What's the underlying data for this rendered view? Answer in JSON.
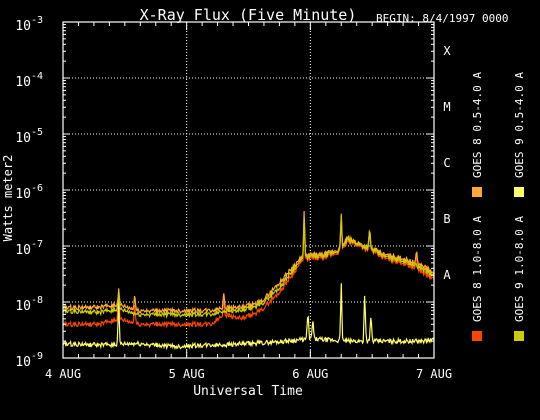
{
  "chart_data": {
    "type": "line",
    "title": "X-Ray Flux (Five Minute)",
    "begin_label": "BEGIN: 8/4/1997 0000",
    "xlabel": "Universal Time",
    "ylabel": "Watts meter2",
    "y_scale": "log",
    "ylim": [
      1e-09,
      0.001
    ],
    "xlim": [
      0,
      3
    ],
    "x_ticks": [
      {
        "v": 0,
        "label": "4 AUG"
      },
      {
        "v": 1,
        "label": "5 AUG"
      },
      {
        "v": 2,
        "label": "6 AUG"
      },
      {
        "v": 3,
        "label": "7 AUG"
      }
    ],
    "y_ticks": [
      {
        "exp": -9,
        "base": "10",
        "sup": "-9"
      },
      {
        "exp": -8,
        "base": "10",
        "sup": "-8"
      },
      {
        "exp": -7,
        "base": "10",
        "sup": "-7"
      },
      {
        "exp": -6,
        "base": "10",
        "sup": "-6"
      },
      {
        "exp": -5,
        "base": "10",
        "sup": "-5"
      },
      {
        "exp": -4,
        "base": "10",
        "sup": "-4"
      },
      {
        "exp": -3,
        "base": "10",
        "sup": "-3"
      }
    ],
    "flare_classes": [
      {
        "label": "A",
        "exp": -7.5
      },
      {
        "label": "B",
        "exp": -6.5
      },
      {
        "label": "C",
        "exp": -5.5
      },
      {
        "label": "M",
        "exp": -4.5
      },
      {
        "label": "X",
        "exp": -3.5
      }
    ],
    "grid": true,
    "legend_placement": "right",
    "series": [
      {
        "name": "GOES 8 1.0-8.0 A",
        "color": "#ff4400",
        "points": [
          [
            0,
            4e-09
          ],
          [
            0.3,
            4e-09
          ],
          [
            0.45,
            5e-09
          ],
          [
            0.6,
            4e-09
          ],
          [
            0.9,
            4e-09
          ],
          [
            1.2,
            4e-09
          ],
          [
            1.3,
            6e-09
          ],
          [
            1.45,
            5e-09
          ],
          [
            1.6,
            7e-09
          ],
          [
            1.75,
            1.5e-08
          ],
          [
            1.85,
            3e-08
          ],
          [
            1.92,
            5e-08
          ],
          [
            2.0,
            6e-08
          ],
          [
            2.1,
            6e-08
          ],
          [
            2.25,
            8e-08
          ],
          [
            2.3,
            1.2e-07
          ],
          [
            2.4,
            1e-07
          ],
          [
            2.5,
            8e-08
          ],
          [
            2.6,
            6e-08
          ],
          [
            2.75,
            5e-08
          ],
          [
            2.85,
            4e-08
          ],
          [
            2.95,
            3e-08
          ],
          [
            3.0,
            2.5e-08
          ]
        ],
        "spikes": [
          [
            0.45,
            1.2e-08
          ],
          [
            0.58,
            1e-08
          ],
          [
            1.3,
            1.2e-08
          ],
          [
            1.95,
            2.5e-07
          ],
          [
            2.25,
            3e-07
          ],
          [
            2.48,
            1.8e-07
          ],
          [
            2.86,
            7e-08
          ]
        ]
      },
      {
        "name": "GOES 8 0.5-4.0 A",
        "color": "#ffaa33",
        "points": [
          [
            0,
            8e-09
          ],
          [
            0.3,
            8e-09
          ],
          [
            0.45,
            9e-09
          ],
          [
            0.6,
            7e-09
          ],
          [
            0.9,
            7e-09
          ],
          [
            1.2,
            7e-09
          ],
          [
            1.3,
            8e-09
          ],
          [
            1.45,
            8e-09
          ],
          [
            1.6,
            1e-08
          ],
          [
            1.75,
            2.2e-08
          ],
          [
            1.85,
            4e-08
          ],
          [
            1.92,
            6e-08
          ],
          [
            2.0,
            7e-08
          ],
          [
            2.1,
            7e-08
          ],
          [
            2.25,
            9e-08
          ],
          [
            2.3,
            1.4e-07
          ],
          [
            2.4,
            1.1e-07
          ],
          [
            2.5,
            9e-08
          ],
          [
            2.6,
            7e-08
          ],
          [
            2.75,
            6e-08
          ],
          [
            2.85,
            5e-08
          ],
          [
            2.95,
            4e-08
          ],
          [
            3.0,
            3e-08
          ]
        ],
        "spikes": [
          [
            0.45,
            1.6e-08
          ],
          [
            0.58,
            1.4e-08
          ],
          [
            1.3,
            1.5e-08
          ],
          [
            1.95,
            4e-07
          ],
          [
            2.25,
            3.5e-07
          ],
          [
            2.48,
            2e-07
          ],
          [
            2.86,
            8e-08
          ]
        ]
      },
      {
        "name": "GOES 9 0.5-4.0 A",
        "color": "#ffff66",
        "points": [
          [
            0,
            1.8e-09
          ],
          [
            0.3,
            1.7e-09
          ],
          [
            0.6,
            1.8e-09
          ],
          [
            0.9,
            1.6e-09
          ],
          [
            1.2,
            1.7e-09
          ],
          [
            1.5,
            1.8e-09
          ],
          [
            1.8,
            2e-09
          ],
          [
            2.0,
            2.2e-09
          ],
          [
            2.3,
            2e-09
          ],
          [
            2.6,
            2e-09
          ],
          [
            2.9,
            2e-09
          ],
          [
            3.0,
            2.1e-09
          ]
        ],
        "spikes": [
          [
            0.45,
            1e-08
          ],
          [
            1.98,
            7e-09
          ],
          [
            2.02,
            5e-09
          ],
          [
            2.25,
            2e-08
          ],
          [
            2.44,
            1.5e-08
          ],
          [
            2.49,
            6e-09
          ]
        ]
      },
      {
        "name": "GOES 9 1.0-8.0 A",
        "color": "#cccc00",
        "points": [
          [
            0,
            7e-09
          ],
          [
            0.3,
            6.5e-09
          ],
          [
            0.45,
            7.5e-09
          ],
          [
            0.6,
            6e-09
          ],
          [
            0.9,
            6e-09
          ],
          [
            1.2,
            6e-09
          ],
          [
            1.3,
            7e-09
          ],
          [
            1.45,
            7e-09
          ],
          [
            1.6,
            9e-09
          ],
          [
            1.75,
            1.8e-08
          ],
          [
            1.85,
            3.5e-08
          ],
          [
            1.92,
            5.5e-08
          ],
          [
            2.0,
            6.5e-08
          ],
          [
            2.1,
            6.5e-08
          ],
          [
            2.25,
            8.5e-08
          ],
          [
            2.3,
            1.3e-07
          ],
          [
            2.4,
            1.05e-07
          ],
          [
            2.5,
            8.5e-08
          ],
          [
            2.6,
            6.5e-08
          ],
          [
            2.75,
            5.5e-08
          ],
          [
            2.85,
            4.5e-08
          ],
          [
            2.95,
            3.5e-08
          ],
          [
            3.0,
            2.8e-08
          ]
        ],
        "spikes": [
          [
            0.45,
            1.4e-08
          ],
          [
            1.95,
            3e-07
          ],
          [
            2.25,
            3.2e-07
          ],
          [
            2.48,
            1.9e-07
          ]
        ]
      }
    ]
  }
}
